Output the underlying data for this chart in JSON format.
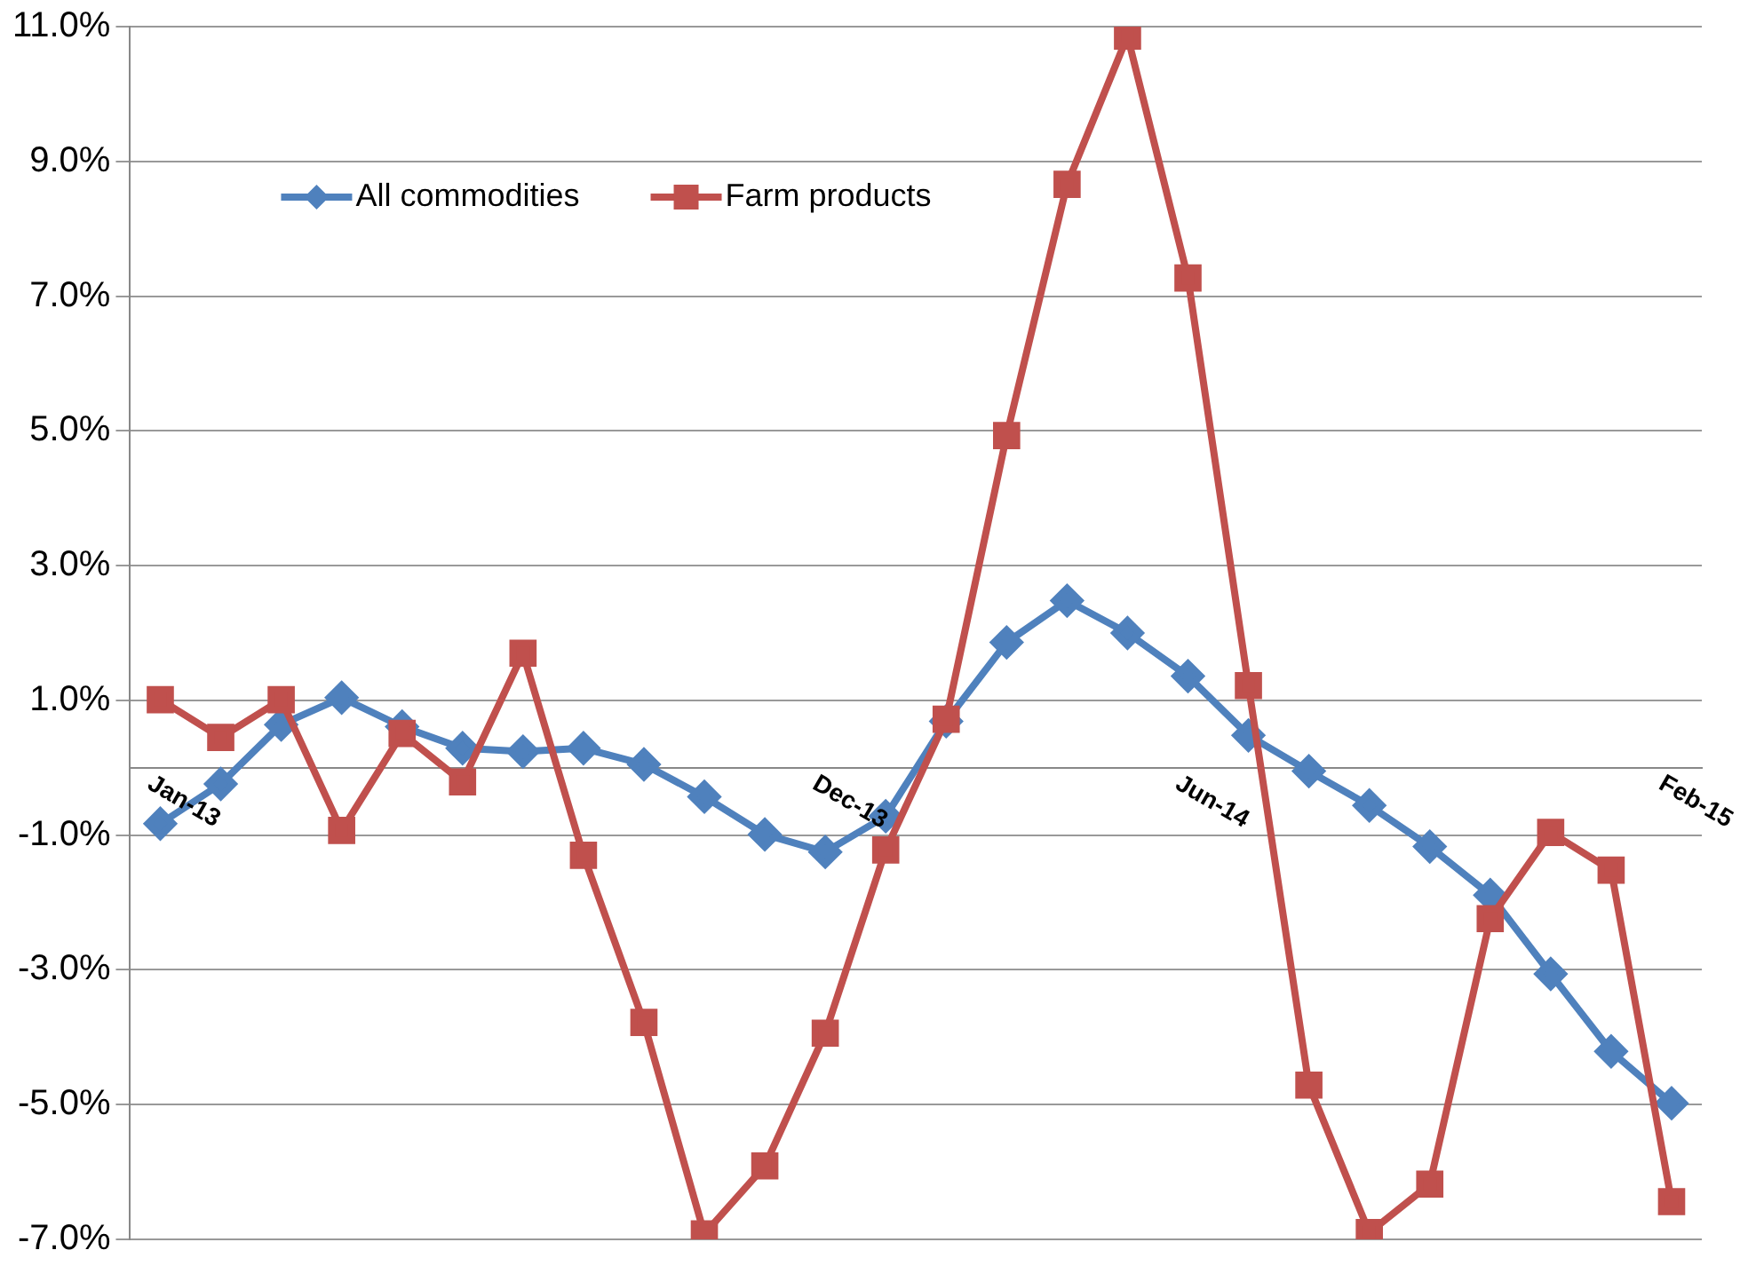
{
  "chart_data": {
    "type": "line",
    "categories": [
      "Jan-13",
      null,
      null,
      null,
      null,
      null,
      null,
      null,
      null,
      null,
      null,
      "Dec-13",
      null,
      null,
      null,
      null,
      null,
      "Jun-14",
      null,
      null,
      null,
      null,
      null,
      null,
      null,
      "Feb-15"
    ],
    "series": [
      {
        "name": "All commodities",
        "color": "#4f81bd",
        "marker": "diamond",
        "values": [
          -0.83,
          -0.24,
          0.64,
          1.04,
          0.61,
          0.29,
          0.24,
          0.29,
          0.05,
          -0.43,
          -0.99,
          -1.25,
          -0.72,
          0.69,
          1.86,
          2.48,
          2.0,
          1.36,
          0.48,
          -0.05,
          -0.56,
          -1.17,
          -1.89,
          -3.06,
          -4.21,
          -4.98
        ]
      },
      {
        "name": "Farm products",
        "color": "#c0504d",
        "marker": "square",
        "values": [
          1.01,
          0.45,
          1.01,
          -0.93,
          0.51,
          -0.21,
          1.7,
          -1.3,
          -3.78,
          -6.92,
          -5.91,
          -3.94,
          -1.22,
          0.72,
          4.93,
          8.66,
          10.86,
          7.27,
          1.22,
          -4.71,
          -6.9,
          -6.18,
          -2.24,
          -0.96,
          -1.52,
          -6.44
        ]
      }
    ],
    "ylim": [
      -7,
      11
    ],
    "yticks": [
      {
        "value": -7,
        "label": "-7.0%"
      },
      {
        "value": -5,
        "label": "-5.0%"
      },
      {
        "value": -3,
        "label": "-3.0%"
      },
      {
        "value": -1,
        "label": "-1.0%"
      },
      {
        "value": 1,
        "label": "1.0%"
      },
      {
        "value": 3,
        "label": "3.0%"
      },
      {
        "value": 5,
        "label": "5.0%"
      },
      {
        "value": 7,
        "label": "7.0%"
      },
      {
        "value": 9,
        "label": "9.0%"
      },
      {
        "value": 11,
        "label": "11.0%"
      }
    ],
    "grid": "y",
    "legend": "top left",
    "line_style": "solid"
  }
}
